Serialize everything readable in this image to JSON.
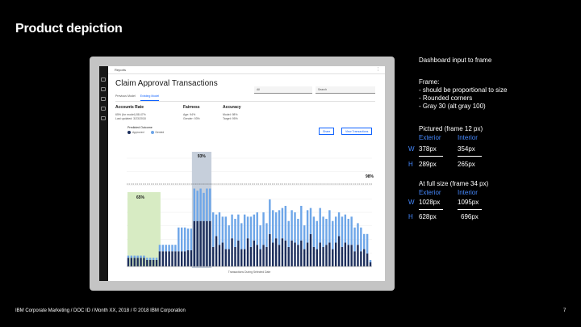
{
  "slide": {
    "title": "Product depiction",
    "footer": "IBM Corporate Marketing / DOC ID / Month XX, 2018 / © 2018 IBM Corporation",
    "page_number": "7"
  },
  "dashboard": {
    "breadcrumb": "Reports",
    "title": "Claim Approval Transactions",
    "select_placeholder": "All",
    "search_placeholder": "Search",
    "tabs": [
      {
        "label": "Previous Model",
        "active": false
      },
      {
        "label": "Existing Model",
        "active": true
      }
    ],
    "kpis": [
      {
        "title": "Accounts Rate",
        "lines": [
          "65% (for model) 88.47%",
          "Last updated: 3/23/2018"
        ]
      },
      {
        "title": "Fairness",
        "lines": [
          "Age: 94%",
          "Gender: 93%"
        ]
      },
      {
        "title": "Accuracy",
        "lines": [
          "Model: 98%",
          "Target: 95%"
        ]
      }
    ],
    "legend_title": "Predicted Outcome",
    "legend": [
      {
        "label": "Approved",
        "color": "#1c2e5c"
      },
      {
        "label": "Denied",
        "color": "#6ea6e8"
      }
    ],
    "buttons": [
      "Share",
      "View Transactions"
    ],
    "x_axis_title": "Transactions During Selected Date",
    "highlight_colors": {
      "green": "#d7ebc3",
      "gray": "#c6cfdb"
    }
  },
  "chart_data": {
    "type": "bar",
    "stacked": true,
    "annotations": [
      "65%",
      "93%",
      "98%"
    ],
    "series": [
      {
        "name": "Approved",
        "values": [
          8,
          8,
          8,
          8,
          8,
          8,
          6,
          6,
          6,
          6,
          14,
          14,
          14,
          14,
          14,
          14,
          14,
          14,
          14,
          15,
          15,
          42,
          42,
          42,
          42,
          42,
          42,
          18,
          28,
          20,
          22,
          16,
          16,
          26,
          18,
          24,
          16,
          16,
          26,
          18,
          24,
          20,
          16,
          20,
          18,
          30,
          22,
          26,
          20,
          26,
          24,
          18,
          24,
          22,
          20,
          24,
          16,
          22,
          30,
          18,
          16,
          22,
          18,
          20,
          22,
          16,
          22,
          28,
          18,
          22,
          20,
          20,
          14,
          20,
          14,
          16,
          12,
          4
        ]
      },
      {
        "name": "Denied",
        "values": [
          2,
          2,
          2,
          2,
          2,
          2,
          2,
          2,
          2,
          2,
          6,
          6,
          6,
          6,
          6,
          6,
          22,
          22,
          22,
          20,
          20,
          30,
          28,
          30,
          26,
          30,
          30,
          32,
          20,
          30,
          24,
          30,
          22,
          22,
          26,
          24,
          24,
          32,
          20,
          28,
          24,
          30,
          22,
          30,
          22,
          32,
          30,
          24,
          32,
          28,
          32,
          24,
          28,
          28,
          24,
          32,
          22,
          30,
          24,
          28,
          26,
          32,
          28,
          24,
          30,
          26,
          24,
          22,
          28,
          26,
          24,
          26,
          22,
          20,
          22,
          14,
          18,
          2
        ]
      }
    ]
  },
  "notes": {
    "input_title": "Dashboard input to frame",
    "frame_title": "Frame:",
    "frame_items": [
      "-  should be proportional to size",
      "-  Rounded corners",
      "- Gray 30 (alt gray 100)"
    ],
    "pictured_title": "Pictured (frame 12 px)",
    "fullsize_title": "At full size (frame 34 px)",
    "col_exterior": "Exterior",
    "col_interior": "Interior",
    "row_w": "W",
    "row_h": "H",
    "pictured": {
      "w_ext": "378px",
      "w_int": "354px",
      "h_ext": "289px",
      "h_int": "265px"
    },
    "fullsize": {
      "w_ext": "1028px",
      "w_int": "1095px",
      "h_ext": "628px",
      "h_int": "696px"
    }
  }
}
